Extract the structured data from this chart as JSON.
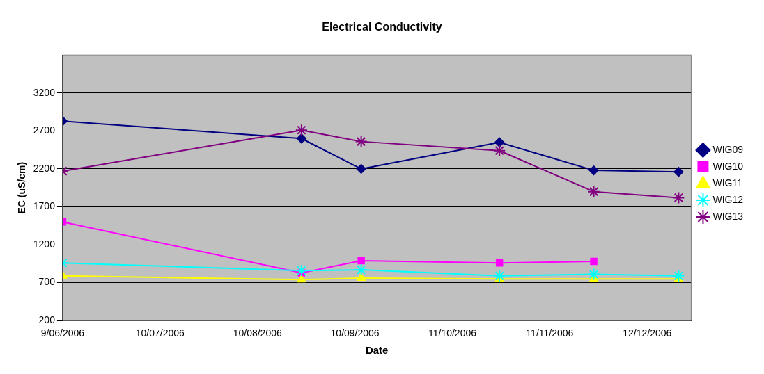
{
  "chart_data": {
    "type": "line",
    "title": "Electrical Conductivity",
    "xlabel": "Date",
    "ylabel": "EC (uS/cm)",
    "x": [
      "2006-06-09",
      "2006-08-24",
      "2006-09-12",
      "2006-10-26",
      "2006-11-25",
      "2006-12-22"
    ],
    "xlim": [
      "2006-06-09",
      "2006-12-26"
    ],
    "xticks": [
      {
        "value": "2006-06-09",
        "label": "9/06/2006"
      },
      {
        "value": "2006-07-10",
        "label": "10/07/2006"
      },
      {
        "value": "2006-08-10",
        "label": "10/08/2006"
      },
      {
        "value": "2006-09-10",
        "label": "10/09/2006"
      },
      {
        "value": "2006-10-11",
        "label": "11/10/2006"
      },
      {
        "value": "2006-11-11",
        "label": "11/11/2006"
      },
      {
        "value": "2006-12-12",
        "label": "12/12/2006"
      }
    ],
    "ylim": [
      200,
      3700
    ],
    "yticks": [
      200,
      700,
      1200,
      1700,
      2200,
      2700,
      3200
    ],
    "grid": "y",
    "legend": "right",
    "line_style": "solid",
    "series": [
      {
        "name": "WIG09",
        "color": "#000080",
        "marker": "diamond",
        "values": [
          2830,
          2600,
          2200,
          2550,
          2180,
          2160
        ]
      },
      {
        "name": "WIG10",
        "color": "#ff00ff",
        "marker": "square",
        "values": [
          1500,
          830,
          990,
          960,
          980,
          null
        ]
      },
      {
        "name": "WIG11",
        "color": "#ffff00",
        "marker": "triangle",
        "values": [
          790,
          740,
          760,
          750,
          750,
          750
        ]
      },
      {
        "name": "WIG12",
        "color": "#00ffff",
        "marker": "cross",
        "values": [
          960,
          860,
          870,
          790,
          810,
          790
        ]
      },
      {
        "name": "WIG13",
        "color": "#800080",
        "marker": "cross",
        "values": [
          2170,
          2710,
          2560,
          2440,
          1900,
          1820
        ]
      }
    ]
  }
}
